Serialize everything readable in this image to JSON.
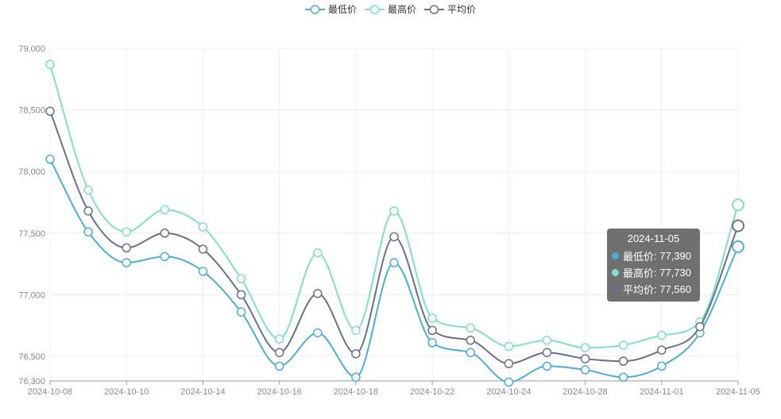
{
  "legend": [
    {
      "name": "最低价",
      "color": "#4aaed7"
    },
    {
      "name": "最高价",
      "color": "#7ee0c7"
    },
    {
      "name": "平均价",
      "color": "#6b7088"
    }
  ],
  "tooltip": {
    "date": "2024-11-05",
    "rows": [
      {
        "label": "最低价",
        "value": "77,390",
        "color": "#4aaed7"
      },
      {
        "label": "最高价",
        "value": "77,730",
        "color": "#7ee0c7"
      },
      {
        "label": "平均价",
        "value": "77,560",
        "color": "#6b7088"
      }
    ]
  },
  "chart_data": {
    "type": "line",
    "title": "",
    "xlabel": "",
    "ylabel": "",
    "ylim": [
      76300,
      79000
    ],
    "y_ticks": [
      "79,000",
      "78,500",
      "78,000",
      "77,500",
      "77,000",
      "76,500",
      "76,300"
    ],
    "y_tick_values": [
      79000,
      78500,
      78000,
      77500,
      77000,
      76500,
      76300
    ],
    "x_tick_labels": [
      "2024-10-08",
      "2024-10-10",
      "2024-10-14",
      "2024-10-16",
      "2024-10-18",
      "2024-10-22",
      "2024-10-24",
      "2024-10-28",
      "2024-11-01",
      "2024-11-05"
    ],
    "x_tick_index": [
      0,
      2,
      4,
      6,
      8,
      10,
      12,
      14,
      16,
      18
    ],
    "x": [
      "2024-10-08",
      "2024-10-09",
      "2024-10-10",
      "2024-10-11",
      "2024-10-14",
      "2024-10-15",
      "2024-10-16",
      "2024-10-17",
      "2024-10-18",
      "2024-10-21",
      "2024-10-22",
      "2024-10-23",
      "2024-10-24",
      "2024-10-25",
      "2024-10-28",
      "2024-10-29",
      "2024-11-01",
      "2024-11-04",
      "2024-11-05"
    ],
    "series": [
      {
        "name": "最低价",
        "color": "#4aaed7",
        "values": [
          78100,
          77510,
          77260,
          77310,
          77190,
          76860,
          76420,
          76690,
          76330,
          77260,
          76610,
          76530,
          76290,
          76420,
          76390,
          76330,
          76420,
          76690,
          77390
        ]
      },
      {
        "name": "最高价",
        "color": "#7ee0c7",
        "values": [
          78870,
          77850,
          77510,
          77690,
          77550,
          77130,
          76640,
          77340,
          76710,
          77680,
          76810,
          76730,
          76580,
          76630,
          76570,
          76590,
          76670,
          76780,
          77730
        ]
      },
      {
        "name": "平均价",
        "color": "#6b7088",
        "values": [
          78490,
          77680,
          77380,
          77500,
          77370,
          77000,
          76530,
          77010,
          76520,
          77470,
          76710,
          76630,
          76440,
          76530,
          76480,
          76460,
          76550,
          76740,
          77560
        ]
      }
    ]
  }
}
